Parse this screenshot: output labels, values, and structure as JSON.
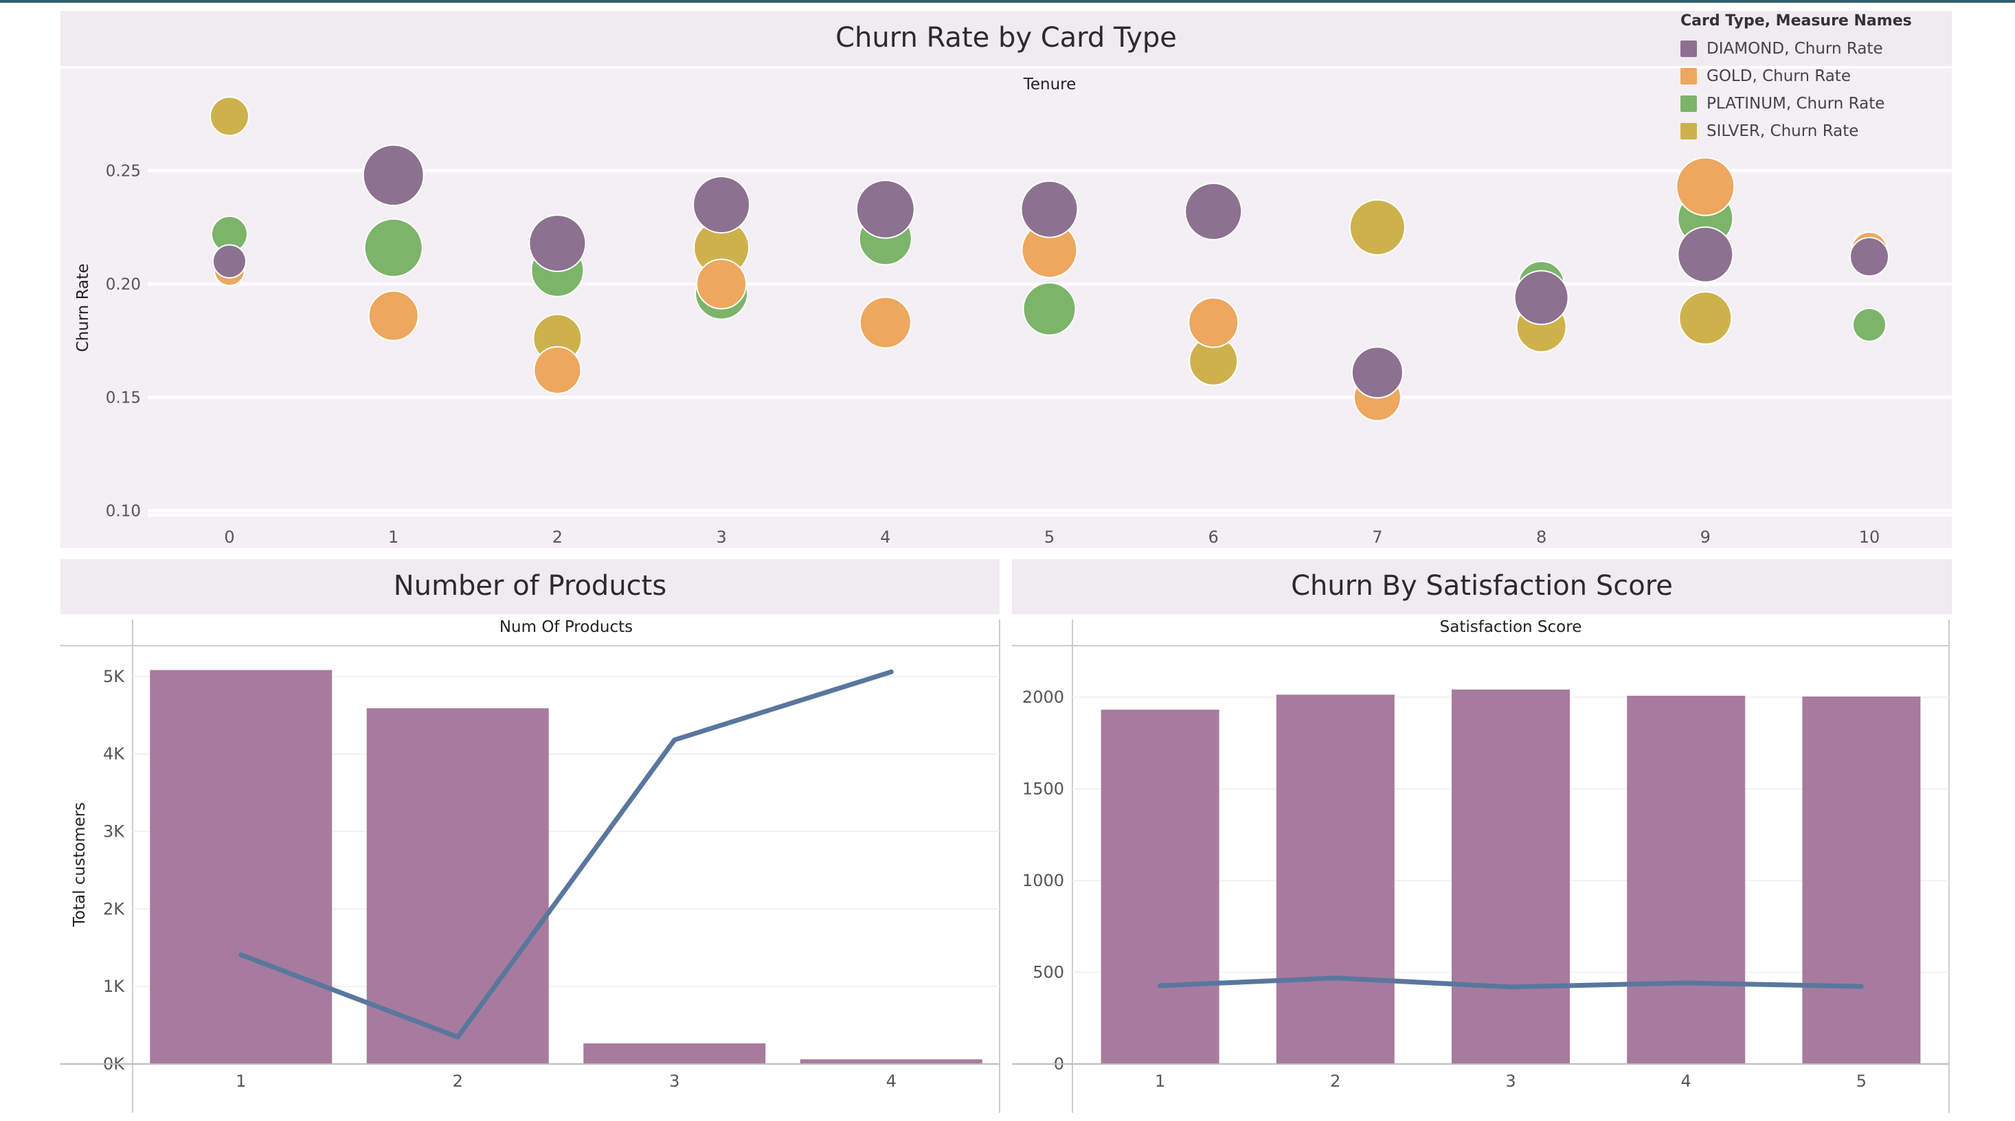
{
  "colors": {
    "diamond": "#8d7190",
    "gold": "#eea75e",
    "platinum": "#7cb46a",
    "silver": "#cdb24c",
    "bar": "#a77b9d",
    "line": "#59779e"
  },
  "legend": {
    "title": "Card Type, Measure Names",
    "items": [
      {
        "label": "DIAMOND, Churn Rate",
        "color": "#8d7190"
      },
      {
        "label": "GOLD, Churn Rate",
        "color": "#eea75e"
      },
      {
        "label": "PLATINUM, Churn Rate",
        "color": "#7cb46a"
      },
      {
        "label": "SILVER, Churn Rate",
        "color": "#cdb24c"
      }
    ]
  },
  "chart_data": [
    {
      "type": "scatter",
      "title": "Churn Rate by Card Type",
      "xlabel": "Tenure",
      "ylabel": "Churn Rate",
      "x_ticks": [
        "0",
        "1",
        "2",
        "3",
        "4",
        "5",
        "6",
        "7",
        "8",
        "9",
        "10"
      ],
      "y_ticks": [
        "0.10",
        "0.15",
        "0.20",
        "0.25"
      ],
      "ylim": [
        0.095,
        0.295
      ],
      "grid": true,
      "legend_position": "top-right",
      "series": [
        {
          "name": "SILVER, Churn Rate",
          "key": "silver",
          "points": [
            [
              0,
              0.274
            ],
            [
              1,
              null
            ],
            [
              2,
              0.176
            ],
            [
              3,
              0.216
            ],
            [
              4,
              null
            ],
            [
              5,
              null
            ],
            [
              6,
              0.166
            ],
            [
              7,
              0.225
            ],
            [
              8,
              0.181
            ],
            [
              9,
              0.185
            ],
            [
              10,
              null
            ]
          ]
        },
        {
          "name": "PLATINUM, Churn Rate",
          "key": "platinum",
          "points": [
            [
              0,
              0.222
            ],
            [
              1,
              0.216
            ],
            [
              2,
              0.206
            ],
            [
              3,
              0.196
            ],
            [
              4,
              0.22
            ],
            [
              5,
              0.189
            ],
            [
              6,
              0.23
            ],
            [
              7,
              null
            ],
            [
              8,
              0.2
            ],
            [
              9,
              0.229
            ],
            [
              10,
              0.182
            ]
          ]
        },
        {
          "name": "GOLD, Churn Rate",
          "key": "gold",
          "points": [
            [
              0,
              0.206
            ],
            [
              1,
              0.186
            ],
            [
              2,
              0.162
            ],
            [
              3,
              0.2
            ],
            [
              4,
              0.183
            ],
            [
              5,
              0.215
            ],
            [
              6,
              0.183
            ],
            [
              7,
              0.15
            ],
            [
              8,
              null
            ],
            [
              9,
              0.243
            ],
            [
              10,
              0.215
            ]
          ]
        },
        {
          "name": "DIAMOND, Churn Rate",
          "key": "diamond",
          "points": [
            [
              0,
              0.21
            ],
            [
              1,
              0.248
            ],
            [
              2,
              0.218
            ],
            [
              3,
              0.235
            ],
            [
              4,
              0.233
            ],
            [
              5,
              0.233
            ],
            [
              6,
              0.232
            ],
            [
              7,
              0.161
            ],
            [
              8,
              0.194
            ],
            [
              9,
              0.213
            ],
            [
              10,
              0.212
            ]
          ]
        }
      ]
    },
    {
      "type": "bar",
      "title": "Number of Products",
      "xlabel": "Num Of Products",
      "ylabel": "Total customers",
      "categories": [
        "1",
        "2",
        "3",
        "4"
      ],
      "y_ticks": [
        "0K",
        "1K",
        "2K",
        "3K",
        "4K",
        "5K"
      ],
      "ylim": [
        0,
        5150
      ],
      "series": [
        {
          "kind": "bar",
          "values": [
            5084,
            4590,
            266,
            60
          ]
        },
        {
          "kind": "line",
          "values": [
            1409,
            348,
            4182,
            5060
          ]
        }
      ]
    },
    {
      "type": "bar",
      "title": "Churn By Satisfaction Score",
      "xlabel": "Satisfaction Score",
      "ylabel": "",
      "categories": [
        "1",
        "2",
        "3",
        "4",
        "5"
      ],
      "y_ticks": [
        "0",
        "500",
        "1000",
        "1500",
        "2000"
      ],
      "ylim": [
        0,
        2150
      ],
      "series": [
        {
          "kind": "bar",
          "values": [
            1932,
            2014,
            2042,
            2008,
            2004
          ]
        },
        {
          "kind": "line",
          "values": [
            427,
            469,
            420,
            442,
            423
          ]
        }
      ]
    }
  ]
}
